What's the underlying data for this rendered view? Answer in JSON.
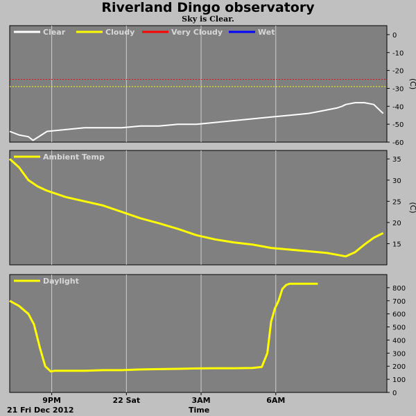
{
  "title": "Riverland Dingo observatory",
  "subtitle": "Sky is Clear.",
  "date_label": "21 Fri Dec 2012",
  "colors": {
    "background": "#c0c0c0",
    "plot_bg": "#808080",
    "grid": "#d0d0d0",
    "clear": "#ffffff",
    "cloudy": "#ffff00",
    "very_cloudy": "#ff0000",
    "wet": "#0000ff",
    "ambient": "#ffff00",
    "daylight": "#ffff00"
  },
  "chart_data": [
    {
      "type": "line",
      "name": "sky",
      "legend": [
        "Clear",
        "Cloudy",
        "Very Cloudy",
        "Wet"
      ],
      "ylabel": "(C)",
      "ylim": [
        -60,
        5
      ],
      "yticks": [
        0,
        -10,
        -20,
        -30,
        -40,
        -50,
        -60
      ],
      "thresholds": [
        {
          "name": "Very Cloudy",
          "value": -25
        },
        {
          "name": "Cloudy",
          "value": -29
        }
      ],
      "series": [
        {
          "name": "Clear",
          "x": [
            0,
            0.5,
            1.0,
            1.25,
            2.0,
            3.0,
            4.0,
            5.0,
            6.0,
            7.0,
            8.0,
            9.0,
            10.0,
            11.0,
            12.0,
            13.0,
            14.0,
            15.0,
            16.0,
            16.5,
            17.0,
            17.5,
            17.8,
            18.0,
            18.5,
            19.0,
            19.5,
            20.0
          ],
          "y": [
            -54,
            -56,
            -57,
            -59,
            -54,
            -53,
            -52,
            -52,
            -52,
            -51,
            -51,
            -50,
            -50,
            -49,
            -48,
            -47,
            -46,
            -45,
            -44,
            -43,
            -42,
            -41,
            -40,
            -39,
            -38,
            -38,
            -39,
            -44
          ]
        }
      ]
    },
    {
      "type": "line",
      "name": "ambient",
      "legend": [
        "Ambient Temp"
      ],
      "ylabel": "(C)",
      "ylim": [
        10,
        37
      ],
      "yticks": [
        15,
        20,
        25,
        30,
        35
      ],
      "series": [
        {
          "name": "Ambient Temp",
          "x": [
            0,
            0.5,
            1.0,
            1.5,
            2.0,
            3.0,
            4.0,
            5.0,
            6.0,
            7.0,
            8.0,
            9.0,
            10.0,
            11.0,
            12.0,
            13.0,
            14.0,
            15.0,
            16.0,
            17.0,
            17.5,
            18.0,
            18.5,
            19.0,
            19.5,
            20.0
          ],
          "y": [
            35,
            33,
            30,
            28.5,
            27.5,
            26,
            25,
            24,
            22.5,
            21,
            19.8,
            18.5,
            17,
            16,
            15.3,
            14.8,
            14,
            13.6,
            13.2,
            12.8,
            12.4,
            12,
            13.0,
            14.8,
            16.4,
            17.5
          ]
        }
      ]
    },
    {
      "type": "line",
      "name": "daylight",
      "legend": [
        "Daylight"
      ],
      "ylabel": "",
      "ylim": [
        0,
        900
      ],
      "yticks": [
        0,
        100,
        200,
        300,
        400,
        500,
        600,
        700,
        800
      ],
      "xlabel": "Time",
      "xticks": [
        {
          "label": "9PM",
          "x": 2.25
        },
        {
          "label": "22 Sat",
          "x": 6.25
        },
        {
          "label": "3AM",
          "x": 10.25
        },
        {
          "label": "6AM",
          "x": 14.25
        }
      ],
      "series": [
        {
          "name": "Daylight",
          "x": [
            0,
            0.5,
            1.0,
            1.3,
            1.6,
            1.9,
            2.2,
            2.4,
            3.0,
            4.0,
            5.0,
            6.0,
            7.0,
            8.0,
            9.0,
            10.0,
            11.0,
            12.0,
            13.0,
            13.5,
            13.8,
            14.0,
            14.2,
            14.4,
            14.6,
            14.8,
            15.0,
            15.5,
            16.0,
            16.5
          ],
          "y": [
            700,
            660,
            600,
            520,
            350,
            200,
            160,
            165,
            165,
            165,
            170,
            170,
            175,
            178,
            180,
            183,
            185,
            185,
            187,
            195,
            300,
            540,
            640,
            700,
            790,
            820,
            830,
            830,
            830,
            830
          ]
        }
      ]
    }
  ]
}
